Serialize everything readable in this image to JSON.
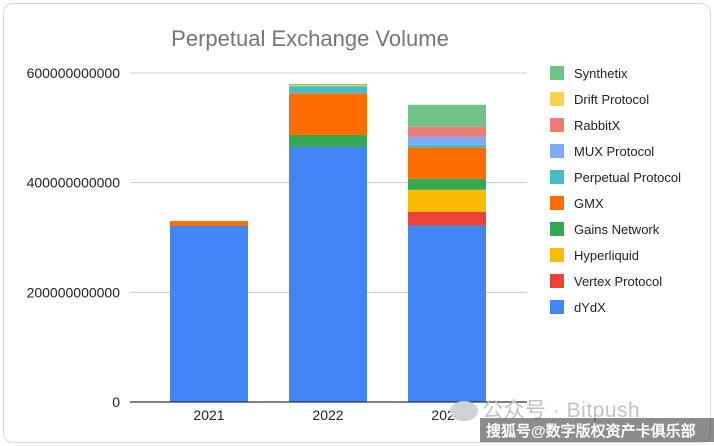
{
  "chart_data": {
    "type": "bar",
    "stacked": true,
    "title": "Perpetual Exchange Volume",
    "xlabel": "",
    "ylabel": "",
    "categories": [
      "2021",
      "2022",
      "2023"
    ],
    "ylim": [
      0,
      600000000000
    ],
    "yticks": [
      0,
      200000000000,
      400000000000,
      600000000000
    ],
    "ytick_labels": [
      "0",
      "200000000000",
      "400000000000",
      "600000000000"
    ],
    "grid": true,
    "legend_position": "right",
    "series": [
      {
        "name": "dYdX",
        "color": "#4285f4",
        "values": [
          321000000000,
          465000000000,
          322000000000
        ]
      },
      {
        "name": "Vertex Protocol",
        "color": "#ea4335",
        "values": [
          0,
          0,
          25000000000
        ]
      },
      {
        "name": "Hyperliquid",
        "color": "#fbbc04",
        "values": [
          0,
          0,
          40000000000
        ]
      },
      {
        "name": "Gains Network",
        "color": "#34a853",
        "values": [
          0,
          22000000000,
          20000000000
        ]
      },
      {
        "name": "GMX",
        "color": "#ff6d01",
        "values": [
          9000000000,
          76000000000,
          57000000000
        ]
      },
      {
        "name": "Perpetual Protocol",
        "color": "#46bdc6",
        "values": [
          0,
          13000000000,
          5000000000
        ]
      },
      {
        "name": "MUX Protocol",
        "color": "#7baaf7",
        "values": [
          0,
          0,
          15000000000
        ]
      },
      {
        "name": "RabbitX",
        "color": "#f07b72",
        "values": [
          0,
          0,
          18000000000
        ]
      },
      {
        "name": "Drift Protocol",
        "color": "#fcd04f",
        "values": [
          0,
          2000000000,
          0
        ]
      },
      {
        "name": "Synthetix",
        "color": "#71c287",
        "values": [
          0,
          2000000000,
          40000000000
        ]
      }
    ]
  },
  "watermark": {
    "text": "公众号 · Bitpush",
    "footer": "搜狐号@数字版权资产卡俱乐部"
  }
}
